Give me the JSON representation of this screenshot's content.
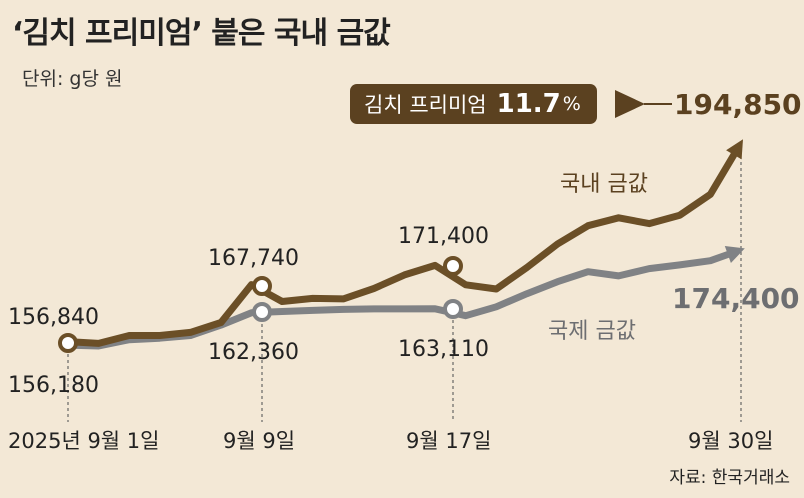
{
  "title": "‘김치 프리미엄’ 붙은 국내 금값",
  "unit": "단위: g당 원",
  "source": "자료: 한국거래소",
  "premium": {
    "label": "김치 프리미엄",
    "value": "11.7",
    "unit": "%"
  },
  "colors": {
    "domestic": "#6b4f27",
    "international": "#808285",
    "background": "#f3e8d6",
    "box": "#5b4120"
  },
  "chart_data": {
    "type": "line",
    "x_ticks": [
      "2025년 9월 1일",
      "9월 9일",
      "9월 17일",
      "9월 30일"
    ],
    "series": [
      {
        "name": "국내 금값",
        "values": [
          156840,
          156500,
          158000,
          158000,
          158600,
          160500,
          167740,
          164500,
          165100,
          165000,
          167000,
          169600,
          171400,
          167700,
          166900,
          171000,
          175500,
          179000,
          180500,
          179400,
          181000,
          185000,
          194850
        ]
      },
      {
        "name": "국제 금값",
        "values": [
          156180,
          156000,
          157200,
          157500,
          158000,
          160000,
          162360,
          162600,
          162800,
          163000,
          163100,
          163100,
          163110,
          161800,
          163500,
          166000,
          168300,
          170200,
          169400,
          170800,
          171500,
          172300,
          174400
        ]
      }
    ],
    "labels": {
      "domestic_start": "156,840",
      "international_start": "156,180",
      "domestic_sep9": "167,740",
      "international_sep9": "162,360",
      "domestic_sep17": "171,400",
      "international_sep17": "163,110",
      "domestic_end": "194,850",
      "international_end": "174,400"
    }
  }
}
